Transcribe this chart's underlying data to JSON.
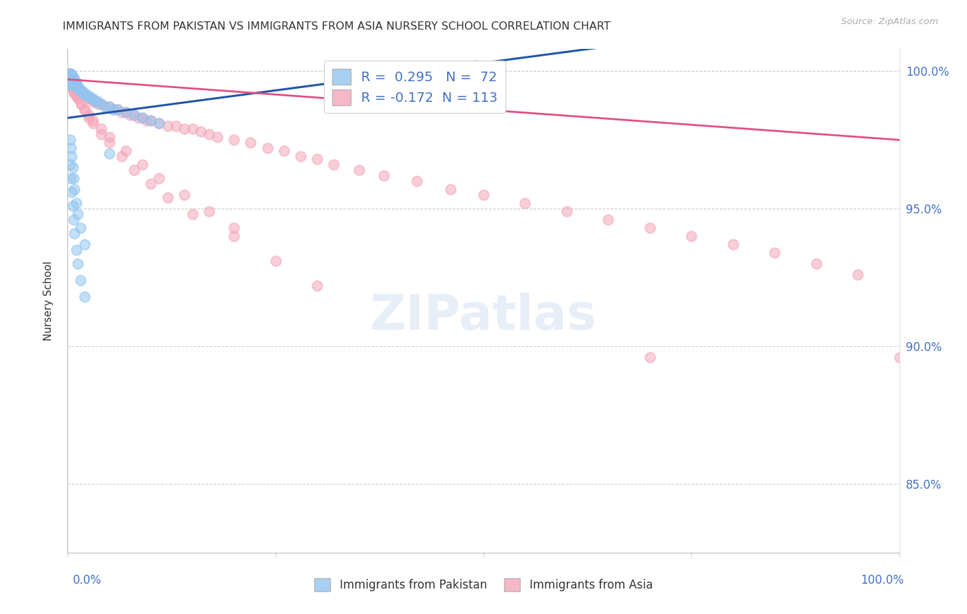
{
  "title": "IMMIGRANTS FROM PAKISTAN VS IMMIGRANTS FROM ASIA NURSERY SCHOOL CORRELATION CHART",
  "source": "Source: ZipAtlas.com",
  "ylabel": "Nursery School",
  "xlim": [
    0.0,
    1.0
  ],
  "ylim": [
    0.825,
    1.008
  ],
  "yticks": [
    0.85,
    0.9,
    0.95,
    1.0
  ],
  "ytick_labels": [
    "85.0%",
    "90.0%",
    "95.0%",
    "100.0%"
  ],
  "pakistan_R": 0.295,
  "pakistan_N": 72,
  "asia_R": -0.172,
  "asia_N": 113,
  "pakistan_color": "#92c5f0",
  "asia_color": "#f4a7b9",
  "pakistan_line_color": "#2255aa",
  "asia_line_color": "#e05080",
  "background_color": "#ffffff",
  "grid_color": "#cccccc",
  "pakistan_x": [
    0.002,
    0.002,
    0.003,
    0.003,
    0.003,
    0.003,
    0.003,
    0.004,
    0.004,
    0.004,
    0.005,
    0.005,
    0.005,
    0.005,
    0.006,
    0.006,
    0.006,
    0.007,
    0.007,
    0.007,
    0.008,
    0.008,
    0.009,
    0.009,
    0.01,
    0.01,
    0.011,
    0.012,
    0.013,
    0.014,
    0.015,
    0.016,
    0.018,
    0.02,
    0.022,
    0.025,
    0.028,
    0.03,
    0.033,
    0.036,
    0.04,
    0.045,
    0.05,
    0.055,
    0.06,
    0.07,
    0.08,
    0.09,
    0.1,
    0.11,
    0.003,
    0.004,
    0.005,
    0.006,
    0.007,
    0.008,
    0.01,
    0.012,
    0.015,
    0.02,
    0.003,
    0.004,
    0.005,
    0.006,
    0.007,
    0.008,
    0.01,
    0.012,
    0.015,
    0.02,
    0.05,
    0.49
  ],
  "pakistan_y": [
    0.999,
    0.998,
    0.999,
    0.998,
    0.997,
    0.996,
    0.995,
    0.999,
    0.998,
    0.997,
    0.998,
    0.997,
    0.996,
    0.995,
    0.998,
    0.997,
    0.996,
    0.997,
    0.996,
    0.995,
    0.997,
    0.996,
    0.996,
    0.995,
    0.996,
    0.995,
    0.995,
    0.994,
    0.994,
    0.993,
    0.993,
    0.993,
    0.992,
    0.992,
    0.991,
    0.991,
    0.99,
    0.99,
    0.989,
    0.989,
    0.988,
    0.987,
    0.987,
    0.986,
    0.986,
    0.985,
    0.984,
    0.983,
    0.982,
    0.981,
    0.975,
    0.972,
    0.969,
    0.965,
    0.961,
    0.957,
    0.952,
    0.948,
    0.943,
    0.937,
    0.966,
    0.961,
    0.956,
    0.951,
    0.946,
    0.941,
    0.935,
    0.93,
    0.924,
    0.918,
    0.97,
    1.002
  ],
  "asia_x": [
    0.002,
    0.003,
    0.003,
    0.004,
    0.004,
    0.005,
    0.005,
    0.006,
    0.006,
    0.007,
    0.007,
    0.008,
    0.009,
    0.01,
    0.011,
    0.012,
    0.013,
    0.014,
    0.016,
    0.018,
    0.02,
    0.022,
    0.025,
    0.028,
    0.03,
    0.033,
    0.036,
    0.04,
    0.045,
    0.05,
    0.055,
    0.06,
    0.065,
    0.07,
    0.075,
    0.08,
    0.085,
    0.09,
    0.095,
    0.1,
    0.11,
    0.12,
    0.13,
    0.14,
    0.15,
    0.16,
    0.17,
    0.18,
    0.2,
    0.22,
    0.24,
    0.26,
    0.28,
    0.3,
    0.32,
    0.35,
    0.38,
    0.42,
    0.46,
    0.5,
    0.55,
    0.6,
    0.65,
    0.7,
    0.75,
    0.8,
    0.85,
    0.9,
    0.95,
    1.0,
    0.003,
    0.004,
    0.005,
    0.006,
    0.007,
    0.008,
    0.01,
    0.013,
    0.016,
    0.02,
    0.025,
    0.03,
    0.04,
    0.05,
    0.07,
    0.09,
    0.11,
    0.14,
    0.17,
    0.2,
    0.003,
    0.004,
    0.005,
    0.006,
    0.007,
    0.008,
    0.01,
    0.013,
    0.016,
    0.02,
    0.025,
    0.03,
    0.04,
    0.05,
    0.065,
    0.08,
    0.1,
    0.12,
    0.15,
    0.2,
    0.25,
    0.3,
    0.7
  ],
  "asia_y": [
    0.999,
    0.999,
    0.998,
    0.998,
    0.997,
    0.998,
    0.997,
    0.997,
    0.996,
    0.997,
    0.996,
    0.996,
    0.995,
    0.995,
    0.994,
    0.994,
    0.994,
    0.993,
    0.992,
    0.992,
    0.991,
    0.991,
    0.99,
    0.99,
    0.989,
    0.989,
    0.988,
    0.988,
    0.987,
    0.987,
    0.986,
    0.986,
    0.985,
    0.985,
    0.984,
    0.984,
    0.983,
    0.983,
    0.982,
    0.982,
    0.981,
    0.98,
    0.98,
    0.979,
    0.979,
    0.978,
    0.977,
    0.976,
    0.975,
    0.974,
    0.972,
    0.971,
    0.969,
    0.968,
    0.966,
    0.964,
    0.962,
    0.96,
    0.957,
    0.955,
    0.952,
    0.949,
    0.946,
    0.943,
    0.94,
    0.937,
    0.934,
    0.93,
    0.926,
    0.896,
    0.996,
    0.995,
    0.994,
    0.994,
    0.993,
    0.992,
    0.991,
    0.99,
    0.988,
    0.986,
    0.984,
    0.982,
    0.979,
    0.976,
    0.971,
    0.966,
    0.961,
    0.955,
    0.949,
    0.943,
    0.997,
    0.996,
    0.995,
    0.994,
    0.993,
    0.992,
    0.991,
    0.99,
    0.988,
    0.986,
    0.983,
    0.981,
    0.977,
    0.974,
    0.969,
    0.964,
    0.959,
    0.954,
    0.948,
    0.94,
    0.931,
    0.922,
    0.896
  ]
}
